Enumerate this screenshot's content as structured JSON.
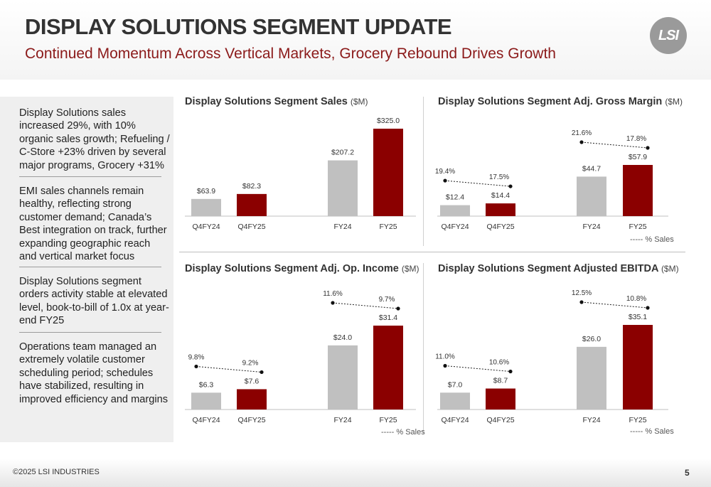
{
  "header": {
    "title": "DISPLAY SOLUTIONS SEGMENT UPDATE",
    "subtitle": "Continued Momentum Across Vertical Markets, Grocery Rebound Drives Growth",
    "logo_text": "LSI"
  },
  "sidebar": {
    "bullets": [
      "Display Solutions sales increased 29%, with 10% organic sales growth; Refueling / C-Store +23% driven by several major programs, Grocery +31%",
      "EMI sales channels remain healthy, reflecting strong customer demand; Canada’s Best integration on track, further expanding geographic reach and vertical market focus",
      "Display Solutions segment orders activity stable at elevated level, book-to-bill of 1.0x at year-end FY25",
      "Operations team managed an extremely volatile customer scheduling period; schedules have stabilized, resulting in improved efficiency and margins"
    ]
  },
  "colors": {
    "prior": "#c0c0c0",
    "current": "#8b0000",
    "accent": "#8b1a1a"
  },
  "chart_data": [
    {
      "type": "bar",
      "title": "Display Solutions Segment Sales",
      "unit": "($M)",
      "categories": [
        "Q4FY24",
        "Q4FY25",
        "FY24",
        "FY25"
      ],
      "values": [
        63.9,
        82.3,
        207.2,
        325.0
      ],
      "value_labels": [
        "$63.9",
        "$82.3",
        "$207.2",
        "$325.0"
      ]
    },
    {
      "type": "bar",
      "title": "Display Solutions Segment Adj. Gross Margin",
      "unit": "($M)",
      "categories": [
        "Q4FY24",
        "Q4FY25",
        "FY24",
        "FY25"
      ],
      "values": [
        12.4,
        14.4,
        44.7,
        57.9
      ],
      "value_labels": [
        "$12.4",
        "$14.4",
        "$44.7",
        "$57.9"
      ],
      "pct_values": [
        19.4,
        17.5,
        21.6,
        17.8
      ],
      "pct_labels": [
        "19.4%",
        "17.5%",
        "21.6%",
        "17.8%"
      ],
      "legend": "----- % Sales"
    },
    {
      "type": "bar",
      "title": "Display Solutions Segment Adj. Op. Income",
      "unit": "($M)",
      "categories": [
        "Q4FY24",
        "Q4FY25",
        "FY24",
        "FY25"
      ],
      "values": [
        6.3,
        7.6,
        24.0,
        31.4
      ],
      "value_labels": [
        "$6.3",
        "$7.6",
        "$24.0",
        "$31.4"
      ],
      "pct_values": [
        9.8,
        9.2,
        11.6,
        9.7
      ],
      "pct_labels": [
        "9.8%",
        "9.2%",
        "11.6%",
        "9.7%"
      ],
      "legend": "----- % Sales"
    },
    {
      "type": "bar",
      "title": "Display Solutions Segment Adjusted EBITDA",
      "unit": "($M)",
      "categories": [
        "Q4FY24",
        "Q4FY25",
        "FY24",
        "FY25"
      ],
      "values": [
        7.0,
        8.7,
        26.0,
        35.1
      ],
      "value_labels": [
        "$7.0",
        "$8.7",
        "$26.0",
        "$35.1"
      ],
      "pct_values": [
        11.0,
        10.6,
        12.5,
        10.8
      ],
      "pct_labels": [
        "11.0%",
        "10.6%",
        "12.5%",
        "10.8%"
      ],
      "legend": "----- % Sales"
    }
  ],
  "footer": {
    "copyright": "©2025 LSI INDUSTRIES",
    "page": "5"
  }
}
